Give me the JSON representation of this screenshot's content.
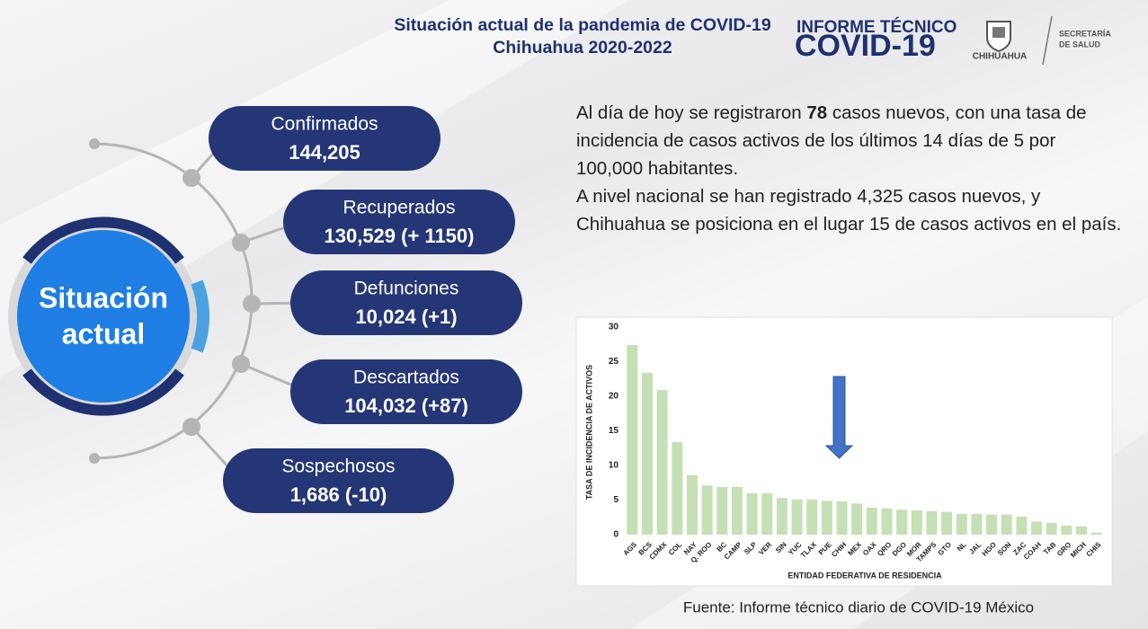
{
  "header": {
    "title": "Situación actual de la pandemia de COVID-19",
    "subtitle": "Chihuahua 2020-2022",
    "report_label": "INFORME TÉCNICO",
    "report_name": "COVID-19",
    "state_logo": "CHIHUAHUA",
    "agency": [
      "SECRETARÍA",
      "DE SALUD"
    ]
  },
  "center": [
    "Situación",
    "actual"
  ],
  "stats": [
    {
      "label": "Confirmados",
      "value": "144,205"
    },
    {
      "label": "Recuperados",
      "value": "130,529 (+ 1150)"
    },
    {
      "label": "Defunciones",
      "value": "10,024 (+1)"
    },
    {
      "label": "Descartados",
      "value": "104,032 (+87)"
    },
    {
      "label": "Sospechosos",
      "value": "1,686 (-10)"
    }
  ],
  "summary": [
    [
      "Al día de hoy se registraron ",
      "78",
      " casos nuevos, con una tasa de incidencia de casos activos de los últimos 14 días de 5 por 100,000 habitantes."
    ],
    "A nivel nacional se han registrado 4,325 casos nuevos, y Chihuahua se posiciona en el lugar 15 de casos activos en el país."
  ],
  "chart_data": {
    "type": "bar",
    "y_label": "TASA DE INCIDENCIA DE ACTIVOS",
    "x_label": "ENTIDAD FEDERATIVA DE RESIDENCIA",
    "categories": [
      "AGS",
      "BCS",
      "CDMX",
      "COL",
      "NAY",
      "Q. ROO",
      "BC",
      "CAMP",
      "SLP",
      "VER",
      "SIN",
      "YUC",
      "TLAX",
      "PUE",
      "CHIH",
      "MEX",
      "OAX",
      "QRO",
      "DGO",
      "MOR",
      "TAMPS",
      "GTO",
      "NL",
      "JAL",
      "HGO",
      "SON",
      "ZAC",
      "COAH",
      "TAB",
      "GRO",
      "MICH",
      "CHIS"
    ],
    "values": [
      27.4,
      23.4,
      20.9,
      13.4,
      8.6,
      7.1,
      6.9,
      6.9,
      6.0,
      6.0,
      5.3,
      5.1,
      5.1,
      4.9,
      4.8,
      4.5,
      3.9,
      3.8,
      3.6,
      3.5,
      3.4,
      3.3,
      3.0,
      3.0,
      2.9,
      2.9,
      2.6,
      1.9,
      1.7,
      1.3,
      1.2,
      0.3
    ],
    "color": "#c5e0b4",
    "ylim": [
      0,
      30
    ],
    "yticks": [
      0,
      5,
      10,
      15,
      20,
      25,
      30
    ],
    "grid": false
  },
  "source": "Fuente: Informe técnico diario de COVID-19 México"
}
